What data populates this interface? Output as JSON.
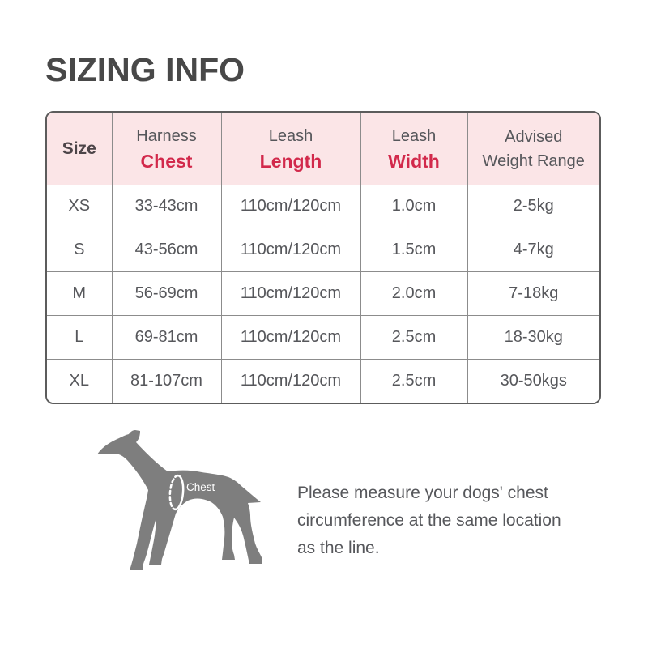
{
  "colors": {
    "accent_red": "#d2294b",
    "header_pink": "#fbe5e7",
    "text_dark": "#56575b",
    "size_header_dark": "#4d4549",
    "title_gray": "#484848",
    "grid_line": "#8c8c8c",
    "outer_border": "#5c5c5c",
    "dog_gray": "#7e7e7e",
    "marker_white": "#ffffff"
  },
  "title": "SIZING INFO",
  "table": {
    "header": [
      {
        "line1": "Size",
        "line2": "",
        "style": "size"
      },
      {
        "line1": "Harness",
        "line2": "Chest",
        "style": "accent"
      },
      {
        "line1": "Leash",
        "line2": "Length",
        "style": "accent"
      },
      {
        "line1": "Leash",
        "line2": "Width",
        "style": "accent"
      },
      {
        "line1": "Advised",
        "line2": "Weight Range",
        "style": "plain"
      }
    ],
    "rows": [
      [
        "XS",
        "33-43cm",
        "110cm/120cm",
        "1.0cm",
        "2-5kg"
      ],
      [
        "S",
        "43-56cm",
        "110cm/120cm",
        "1.5cm",
        "4-7kg"
      ],
      [
        "M",
        "56-69cm",
        "110cm/120cm",
        "2.0cm",
        "7-18kg"
      ],
      [
        "L",
        "69-81cm",
        "110cm/120cm",
        "2.5cm",
        "18-30kg"
      ],
      [
        "XL",
        "81-107cm",
        "110cm/120cm",
        "2.5cm",
        "30-50kgs"
      ]
    ]
  },
  "diagram": {
    "chest_label": "Chest"
  },
  "note": {
    "lines": [
      "Please measure your dogs' chest",
      "circumference at the same location",
      "as the line."
    ]
  }
}
